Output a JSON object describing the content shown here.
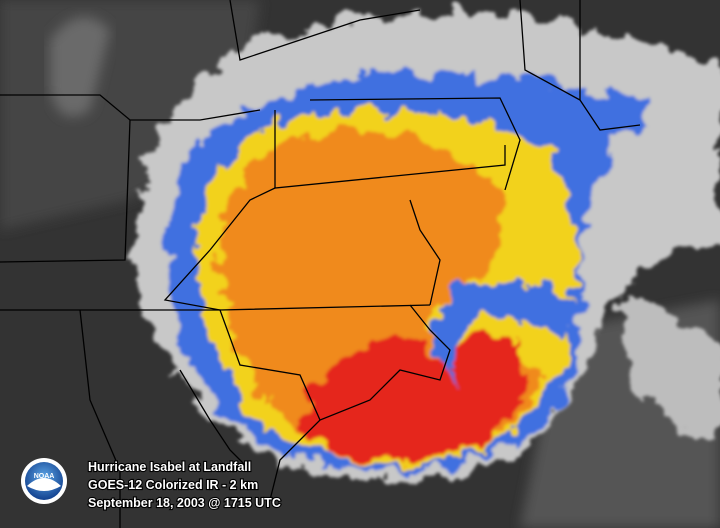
{
  "caption": {
    "lines": [
      "Hurricane Isabel at Landfall",
      "GOES-12 Colorized IR - 2 km",
      "September 18, 2003 @ 1715 UTC"
    ]
  },
  "logo": {
    "text": "NOAA"
  }
}
